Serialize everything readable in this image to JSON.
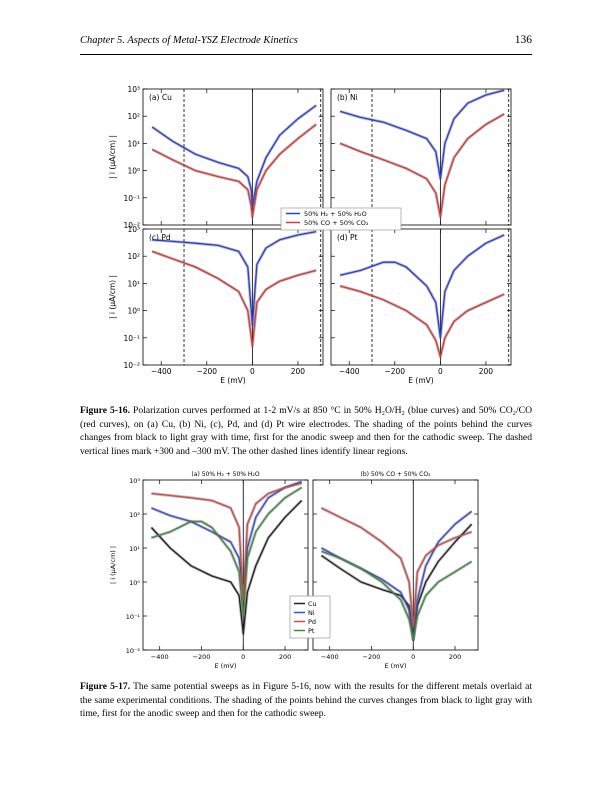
{
  "header": {
    "chapter": "Chapter 5. Aspects of Metal-YSZ Electrode Kinetics",
    "page_number": "136"
  },
  "figure16": {
    "caption_label": "Figure 5-16.",
    "caption_text": "Polarization curves performed at 1-2 mV/s at 850 °C in 50% H₂O/H₂ (blue curves) and 50% CO₂/CO (red curves), on (a) Cu, (b) Ni, (c), Pd, and (d) Pt wire electrodes. The shading of the points behind the curves changes from black to light gray with time, first for the anodic sweep and then for the cathodic sweep. The dashed vertical lines mark +300 and –300 mV. The other dashed lines identify linear regions.",
    "ylabel": "| i (μA/cm) |",
    "xlabel": "E (mV)",
    "legend": [
      "50% H₂ + 50% H₂O",
      "50% CO + 50% CO₂"
    ],
    "colors": {
      "h2": "#2b3fd6",
      "co": "#d63a35"
    }
  },
  "figure17": {
    "caption_label": "Figure 5-17.",
    "caption_text": "The same potential sweeps as in Figure 5-16, now with the results for the different metals overlaid at the same experimental conditions. The shading of the points behind the curves changes from black to light gray with time, first for the anodic sweep and then for the cathodic sweep.",
    "ylabel": "| i (μA/cm) |",
    "xlabel": "E (mV)",
    "legend": [
      "Cu",
      "Ni",
      "Pd",
      "Pt"
    ],
    "colors": {
      "Cu": "#222222",
      "Ni": "#3a4fcf",
      "Pd": "#d04a48",
      "Pt": "#3f8a3f"
    }
  },
  "chart_data": [
    {
      "type": "line",
      "panel": "(a) Cu",
      "xlabel": "E (mV)",
      "ylabel": "| i (μA/cm) |",
      "xlim": [
        -480,
        310
      ],
      "ylim": [
        0.01,
        1000
      ],
      "yscale": "log",
      "xticks": [
        -400,
        -200,
        0,
        200
      ],
      "yticks": [
        "10⁻²",
        "10⁻¹",
        "10⁰",
        "10¹",
        "10²",
        "10³"
      ],
      "series": [
        {
          "name": "50% H₂ + 50% H₂O",
          "x": [
            -440,
            -350,
            -250,
            -150,
            -60,
            -20,
            -5,
            0,
            20,
            60,
            120,
            200,
            280
          ],
          "y": [
            40,
            12,
            4,
            2,
            1.2,
            0.6,
            0.2,
            0.05,
            0.4,
            3,
            20,
            80,
            250
          ]
        },
        {
          "name": "50% CO + 50% CO₂",
          "x": [
            -440,
            -350,
            -250,
            -150,
            -60,
            -20,
            -5,
            0,
            20,
            60,
            120,
            200,
            280
          ],
          "y": [
            6,
            2.5,
            1,
            0.6,
            0.4,
            0.2,
            0.05,
            0.02,
            0.2,
            1,
            4,
            15,
            50
          ]
        }
      ]
    },
    {
      "type": "line",
      "panel": "(b) Ni",
      "xlabel": "E (mV)",
      "ylabel": "| i (μA/cm) |",
      "xlim": [
        -480,
        310
      ],
      "ylim": [
        0.01,
        1000
      ],
      "yscale": "log",
      "xticks": [
        -400,
        -200,
        0,
        200
      ],
      "yticks": [
        "10⁻²",
        "10⁻¹",
        "10⁰",
        "10¹",
        "10²",
        "10³"
      ],
      "series": [
        {
          "name": "50% H₂ + 50% H₂O",
          "x": [
            -440,
            -350,
            -250,
            -150,
            -60,
            -20,
            0,
            20,
            60,
            120,
            200,
            280
          ],
          "y": [
            150,
            90,
            60,
            30,
            15,
            5,
            0.5,
            10,
            80,
            300,
            600,
            900
          ]
        },
        {
          "name": "50% CO + 50% CO₂",
          "x": [
            -440,
            -350,
            -250,
            -150,
            -60,
            -20,
            0,
            20,
            60,
            120,
            200,
            280
          ],
          "y": [
            10,
            5,
            2.5,
            1.2,
            0.5,
            0.15,
            0.02,
            0.3,
            3,
            15,
            50,
            120
          ]
        }
      ]
    },
    {
      "type": "line",
      "panel": "(c) Pd",
      "xlabel": "E (mV)",
      "ylabel": "| i (μA/cm) |",
      "xlim": [
        -480,
        310
      ],
      "ylim": [
        0.01,
        1000
      ],
      "yscale": "log",
      "xticks": [
        -400,
        -200,
        0,
        200
      ],
      "yticks": [
        "10⁻²",
        "10⁻¹",
        "10⁰",
        "10¹",
        "10²",
        "10³"
      ],
      "series": [
        {
          "name": "50% H₂ + 50% H₂O",
          "x": [
            -440,
            -350,
            -250,
            -150,
            -60,
            -20,
            0,
            20,
            60,
            120,
            200,
            280
          ],
          "y": [
            400,
            350,
            300,
            250,
            150,
            40,
            0.3,
            50,
            200,
            400,
            600,
            800
          ]
        },
        {
          "name": "50% CO + 50% CO₂",
          "x": [
            -440,
            -350,
            -250,
            -150,
            -60,
            -20,
            0,
            20,
            60,
            120,
            200,
            280
          ],
          "y": [
            150,
            80,
            40,
            15,
            5,
            1,
            0.05,
            2,
            6,
            12,
            20,
            30
          ]
        }
      ]
    },
    {
      "type": "line",
      "panel": "(d) Pt",
      "xlabel": "E (mV)",
      "ylabel": "| i (μA/cm) |",
      "xlim": [
        -480,
        310
      ],
      "ylim": [
        0.01,
        1000
      ],
      "yscale": "log",
      "xticks": [
        -400,
        -200,
        0,
        200
      ],
      "yticks": [
        "10⁻²",
        "10⁻¹",
        "10⁰",
        "10¹",
        "10²",
        "10³"
      ],
      "series": [
        {
          "name": "50% H₂ + 50% H₂O",
          "x": [
            -440,
            -350,
            -250,
            -200,
            -150,
            -60,
            -20,
            0,
            20,
            60,
            120,
            200,
            280
          ],
          "y": [
            20,
            30,
            60,
            60,
            40,
            8,
            2,
            0.1,
            5,
            30,
            100,
            300,
            600
          ]
        },
        {
          "name": "50% CO + 50% CO₂",
          "x": [
            -440,
            -350,
            -250,
            -150,
            -60,
            -20,
            0,
            20,
            60,
            120,
            200,
            280
          ],
          "y": [
            8,
            5,
            2.5,
            1,
            0.3,
            0.08,
            0.02,
            0.1,
            0.4,
            1,
            2,
            4
          ]
        }
      ]
    },
    {
      "type": "line",
      "panel": "(a) 50% H₂ + 50% H₂O",
      "xlabel": "E (mV)",
      "ylabel": "| i (μA/cm) |",
      "xlim": [
        -480,
        310
      ],
      "ylim": [
        0.01,
        1000
      ],
      "yscale": "log",
      "xticks": [
        -400,
        -200,
        0,
        200
      ],
      "yticks": [
        "10⁻²",
        "10⁻¹",
        "10⁰",
        "10¹",
        "10²",
        "10³"
      ],
      "series": [
        {
          "name": "Cu",
          "x": [
            -440,
            -350,
            -250,
            -150,
            -60,
            -20,
            0,
            20,
            60,
            120,
            200,
            280
          ],
          "y": [
            40,
            10,
            3,
            1.5,
            1,
            0.4,
            0.03,
            0.5,
            3,
            20,
            80,
            250
          ]
        },
        {
          "name": "Ni",
          "x": [
            -440,
            -350,
            -250,
            -150,
            -60,
            -20,
            0,
            20,
            60,
            120,
            200,
            280
          ],
          "y": [
            150,
            90,
            60,
            30,
            15,
            5,
            0.5,
            10,
            80,
            300,
            600,
            900
          ]
        },
        {
          "name": "Pd",
          "x": [
            -440,
            -350,
            -250,
            -150,
            -60,
            -20,
            0,
            20,
            60,
            120,
            200,
            280
          ],
          "y": [
            400,
            350,
            300,
            250,
            150,
            40,
            0.3,
            50,
            200,
            400,
            600,
            800
          ]
        },
        {
          "name": "Pt",
          "x": [
            -440,
            -350,
            -250,
            -200,
            -150,
            -60,
            -20,
            0,
            20,
            60,
            120,
            200,
            280
          ],
          "y": [
            20,
            30,
            60,
            60,
            40,
            8,
            2,
            0.1,
            5,
            30,
            100,
            300,
            600
          ]
        }
      ]
    },
    {
      "type": "line",
      "panel": "(b) 50% CO + 50% CO₂",
      "xlabel": "E (mV)",
      "ylabel": "",
      "xlim": [
        -480,
        310
      ],
      "ylim": [
        0.01,
        1000
      ],
      "yscale": "log",
      "xticks": [
        -400,
        -200,
        0,
        200
      ],
      "series": [
        {
          "name": "Cu",
          "x": [
            -440,
            -350,
            -250,
            -150,
            -60,
            -20,
            0,
            20,
            60,
            120,
            200,
            280
          ],
          "y": [
            6,
            2.5,
            1,
            0.6,
            0.4,
            0.2,
            0.02,
            0.2,
            1,
            4,
            15,
            50
          ]
        },
        {
          "name": "Ni",
          "x": [
            -440,
            -350,
            -250,
            -150,
            -60,
            -20,
            0,
            20,
            60,
            120,
            200,
            280
          ],
          "y": [
            10,
            5,
            2.5,
            1.2,
            0.5,
            0.15,
            0.02,
            0.3,
            3,
            15,
            50,
            120
          ]
        },
        {
          "name": "Pd",
          "x": [
            -440,
            -350,
            -250,
            -150,
            -60,
            -20,
            0,
            20,
            60,
            120,
            200,
            280
          ],
          "y": [
            150,
            80,
            40,
            15,
            5,
            1,
            0.05,
            2,
            6,
            12,
            20,
            30
          ]
        },
        {
          "name": "Pt",
          "x": [
            -440,
            -350,
            -250,
            -150,
            -60,
            -20,
            0,
            20,
            60,
            120,
            200,
            280
          ],
          "y": [
            8,
            5,
            2.5,
            1,
            0.3,
            0.08,
            0.02,
            0.1,
            0.4,
            1,
            2,
            4
          ]
        }
      ]
    }
  ]
}
